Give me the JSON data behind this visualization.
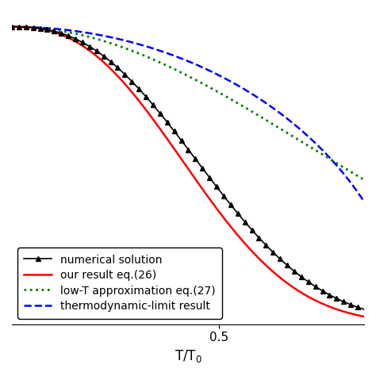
{
  "xlabel": "T/T$_0$",
  "legend_entries": [
    "numerical solution",
    "our result eq.(26)",
    "low-T approximation eq.(27)",
    "thermodynamic-limit result"
  ],
  "line_colors": [
    "black",
    "red",
    "green",
    "blue"
  ],
  "line_styles": [
    "-",
    "-",
    ":",
    "--"
  ],
  "marker_interval": 10,
  "xlim": [
    0.0,
    0.85
  ],
  "ylim": [
    0.0,
    1.05
  ],
  "x_tick_labels": [
    "0.5"
  ],
  "background_color": "#ffffff",
  "legend_fontsize": 10,
  "axis_fontsize": 12
}
